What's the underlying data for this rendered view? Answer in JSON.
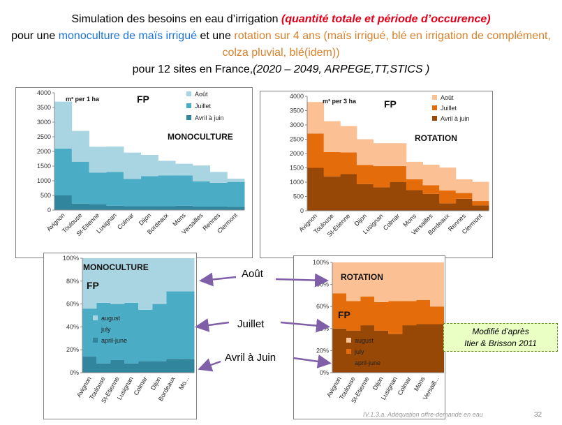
{
  "title": {
    "l1a": "Simulation des besoins en eau d’irrigation ",
    "l1b": "(quantité totale et période d’occurence)",
    "l2a": "pour une ",
    "l2b": "monoculture de  maïs irrigué",
    "l2c": " et une ",
    "l2d": "rotation sur 4 ans (maïs irrigué, blé en irrigation de complément, colza pluvial, blé(idem))",
    "l3a": "pour 12 sites en France,",
    "l3b": "(2020 – 2049, ARPEGE,TT,STICS )"
  },
  "callouts": {
    "aout": "Août",
    "juillet": "Juillet",
    "avril": "Avril à Juin"
  },
  "note": {
    "line1": "Modifié d’après",
    "line2": "Itier & Brisson 2011"
  },
  "footer": {
    "text": "IV.1.3.a. Adéquation offre-demande en eau",
    "page": "32"
  },
  "colors": {
    "mono": {
      "aout": "#a9d4e1",
      "juillet": "#4bacc6",
      "avril": "#31859c"
    },
    "rota": {
      "aout": "#fbc194",
      "juillet": "#e46c0a",
      "avril": "#974806"
    }
  },
  "chart_data": [
    {
      "type": "area",
      "stacking": "absolute",
      "unit_label": "m³ per 1 ha",
      "tag": "FP",
      "label": "MONOCULTURE",
      "ylim": [
        0,
        4000
      ],
      "yticks": [
        "0",
        "500",
        "1000",
        "1500",
        "2000",
        "2500",
        "3000",
        "3500",
        "4000"
      ],
      "categories": [
        "Avignon",
        "Toulouse",
        "StEtienne",
        "Lusignan",
        "Colmar",
        "Dijon",
        "Bordeaux",
        "Mons",
        "Versailles",
        "Rennes",
        "Clermont"
      ],
      "category_labels": [
        "Avignon",
        "Toulouse",
        "St-Etienne",
        "Lusignan",
        "Colmar",
        "Dijon",
        "Bordeaux",
        "Mons",
        "Versailles",
        "Rennes",
        "Clermont"
      ],
      "legend": [
        "Août",
        "Juillet",
        "Avril à juin"
      ],
      "series": [
        {
          "name": "Avril à juin",
          "values": [
            500,
            220,
            200,
            150,
            130,
            130,
            130,
            150,
            120,
            120,
            110
          ]
        },
        {
          "name": "Juillet",
          "values": [
            1600,
            1430,
            1080,
            1150,
            930,
            1030,
            1050,
            1030,
            860,
            810,
            850
          ]
        },
        {
          "name": "Août",
          "values": [
            1600,
            1050,
            880,
            870,
            900,
            720,
            500,
            400,
            540,
            370,
            110
          ]
        }
      ]
    },
    {
      "type": "area",
      "stacking": "absolute",
      "unit_label": "m³ per 3 ha",
      "tag": "FP",
      "label": "ROTATION",
      "ylim": [
        0,
        4000
      ],
      "yticks": [
        "0",
        "500",
        "1000",
        "1500",
        "2000",
        "2500",
        "3000",
        "3500",
        "4000"
      ],
      "categories": [
        "Avignon",
        "Toulouse",
        "StEtienne",
        "Dijon",
        "Lusignan",
        "Colmar",
        "Mons",
        "Versailles",
        "Bordeaux",
        "Rennes",
        "Clermont"
      ],
      "category_labels": [
        "Avignon",
        "Toulouse",
        "St-Etienne",
        "Dijon",
        "Lusignan",
        "Colmar",
        "Mons",
        "Versailles",
        "Bordeaux",
        "Rennes",
        "Clermont"
      ],
      "legend": [
        "Août",
        "Juillet",
        "Avril à juin"
      ],
      "series": [
        {
          "name": "Avril à juin",
          "values": [
            1500,
            1200,
            1280,
            930,
            820,
            1000,
            720,
            590,
            260,
            420,
            190
          ]
        },
        {
          "name": "Juillet",
          "values": [
            1200,
            850,
            760,
            670,
            740,
            560,
            380,
            300,
            450,
            200,
            150
          ]
        },
        {
          "name": "Août",
          "values": [
            1100,
            1080,
            920,
            900,
            800,
            800,
            610,
            720,
            800,
            480,
            670
          ]
        }
      ]
    },
    {
      "type": "area",
      "stacking": "percent",
      "tag": "FP",
      "label": "MONOCULTURE",
      "ylim": [
        0,
        100
      ],
      "yticks": [
        "0%",
        "20%",
        "40%",
        "60%",
        "80%",
        "100%"
      ],
      "categories": [
        "Avignon",
        "Toulouse",
        "StEtienne",
        "Lusignan",
        "Colmar",
        "Dijon",
        "Bordeaux",
        "Mons"
      ],
      "category_labels": [
        "Avignon",
        "Toulouse",
        "St-Etienne",
        "Lusignan",
        "Colmar",
        "Dijon",
        "Bordeaux",
        "Mo..."
      ],
      "legend": [
        "august",
        "july",
        "april-june"
      ],
      "series": [
        {
          "name": "april-june",
          "values": [
            14,
            8,
            11,
            8,
            10,
            10,
            12,
            12
          ]
        },
        {
          "name": "july",
          "values": [
            42,
            53,
            49,
            53,
            45,
            50,
            59,
            59
          ]
        },
        {
          "name": "august",
          "values": [
            44,
            39,
            40,
            39,
            45,
            40,
            29,
            29
          ]
        }
      ]
    },
    {
      "type": "area",
      "stacking": "percent",
      "tag": "FP",
      "label": "ROTATION",
      "ylim": [
        0,
        100
      ],
      "yticks": [
        "0%",
        "20%",
        "40%",
        "60%",
        "80%",
        "100%"
      ],
      "categories": [
        "Avignon",
        "Toulouse",
        "StEtienne",
        "Dijon",
        "Lusignan",
        "Colmar",
        "Mons",
        "Versailles"
      ],
      "category_labels": [
        "Avignon",
        "Toulouse",
        "St-Etienne",
        "Dijon",
        "Lusignan",
        "Colmar",
        "Mons",
        "Versaill..."
      ],
      "legend": [
        "august",
        "july",
        "april-june"
      ],
      "series": [
        {
          "name": "april-june",
          "values": [
            40,
            38,
            43,
            38,
            35,
            43,
            44,
            44
          ]
        },
        {
          "name": "july",
          "values": [
            32,
            27,
            26,
            26,
            30,
            22,
            22,
            16
          ]
        },
        {
          "name": "august",
          "values": [
            28,
            35,
            31,
            36,
            35,
            35,
            34,
            40
          ]
        }
      ]
    }
  ]
}
